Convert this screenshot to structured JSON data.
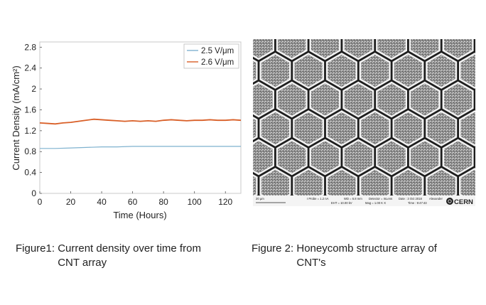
{
  "figure1": {
    "caption_label": "Figure1:",
    "caption_text": "Current density over time from CNT array"
  },
  "figure2": {
    "caption_label": "Figure 2:",
    "caption_text": "Honeycomb structure array of CNT's",
    "scale_label": "20 µm",
    "info_1": "I Probe = 1.2 nA",
    "info_2": "WD = 6.8 mm",
    "info_3": "Detector = InLens",
    "info_4": "EHT = 10.00 kV",
    "info_5": "Mag = 1.00 K X",
    "info_6": "Date : 3 Oct 2018",
    "info_7": "Time : 9:47:43",
    "operator": "Alexander",
    "logo_text": "CERN"
  },
  "chart_data": {
    "type": "line",
    "xlabel": "Time (Hours)",
    "ylabel": "Current Density (mA/cm²)",
    "xlim": [
      0,
      130
    ],
    "ylim": [
      0,
      2.9
    ],
    "xticks": [
      0,
      20,
      40,
      60,
      80,
      100,
      120
    ],
    "yticks": [
      0,
      0.4,
      0.8,
      1.2,
      1.6,
      2,
      2.4,
      2.8
    ],
    "ytick_labels": [
      "0",
      "0.4",
      "0.8",
      "1.2",
      "1.6",
      "2",
      "2.4",
      "2.8"
    ],
    "grid": false,
    "legend_position": "top-right",
    "series": [
      {
        "name": "2.5 V/μm",
        "color": "#7fb2cf",
        "x": [
          0,
          10,
          20,
          30,
          40,
          50,
          60,
          70,
          80,
          90,
          100,
          110,
          120,
          130
        ],
        "y": [
          0.86,
          0.86,
          0.87,
          0.88,
          0.89,
          0.89,
          0.9,
          0.9,
          0.9,
          0.9,
          0.9,
          0.9,
          0.9,
          0.9
        ]
      },
      {
        "name": "2.6 V/μm",
        "color": "#d95f27",
        "x": [
          0,
          5,
          10,
          15,
          20,
          25,
          30,
          35,
          40,
          45,
          50,
          55,
          60,
          65,
          70,
          75,
          80,
          85,
          90,
          95,
          100,
          105,
          110,
          115,
          120,
          125,
          130
        ],
        "y": [
          1.35,
          1.34,
          1.33,
          1.35,
          1.36,
          1.38,
          1.4,
          1.42,
          1.41,
          1.4,
          1.39,
          1.38,
          1.39,
          1.38,
          1.39,
          1.38,
          1.4,
          1.41,
          1.4,
          1.39,
          1.4,
          1.4,
          1.41,
          1.4,
          1.4,
          1.41,
          1.4
        ]
      }
    ]
  }
}
